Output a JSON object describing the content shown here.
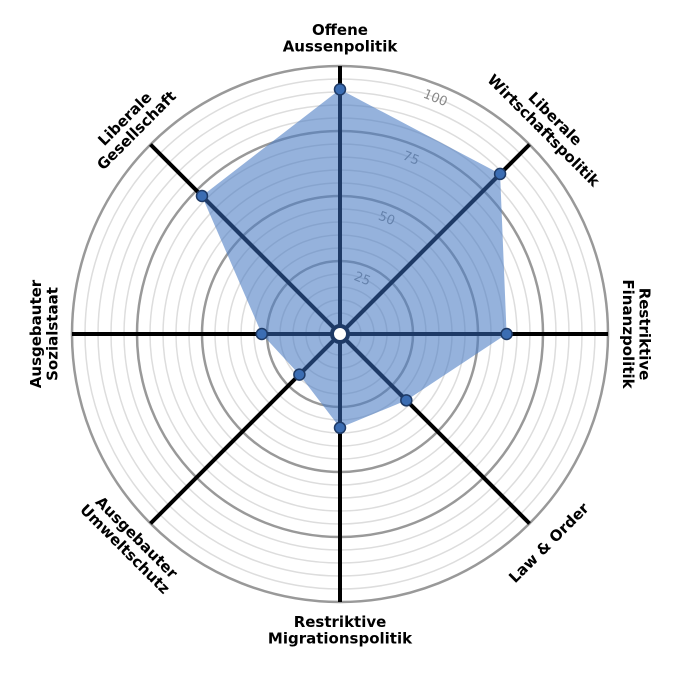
{
  "chart_data": {
    "type": "radar",
    "categories": [
      "Offene\nAussenpolitik",
      "Liberale\nWirtschaftspolitik",
      "Restriktive\nFinanzpolitik",
      "Law & Order",
      "Restriktive\nMigrationspolitik",
      "Ausgebauter\nUmweltschutz",
      "Ausgebauter\nSozialstaat",
      "Liberale\nGesellschaft"
    ],
    "values": [
      91,
      84,
      61,
      33,
      33,
      19,
      27,
      72
    ],
    "color": "#4f7fc4",
    "ylim": [
      0,
      100
    ],
    "yticks": [
      25,
      50,
      75,
      100
    ],
    "minor_yticks": [
      5,
      10,
      15,
      20,
      30,
      35,
      40,
      45,
      55,
      60,
      65,
      70,
      80,
      85,
      90,
      95
    ],
    "grid": true
  }
}
